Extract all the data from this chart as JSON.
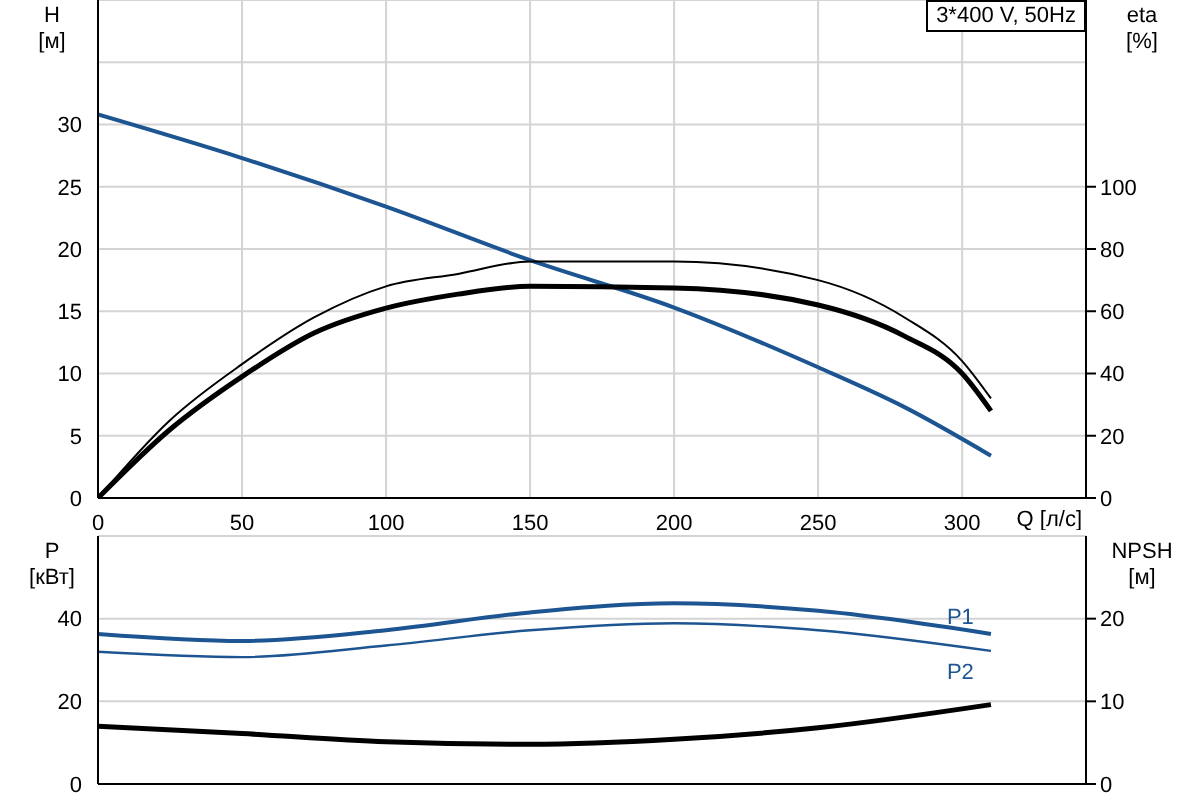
{
  "chart_data": [
    {
      "type": "line",
      "title": "3*400 V, 50Hz",
      "xlabel": "Q [л/с]",
      "ylabel": "H [м]",
      "y2label": "eta [%]",
      "xlim": [
        0,
        343
      ],
      "ylim": [
        0,
        40
      ],
      "y2lim": [
        0,
        160
      ],
      "xticks": [
        0,
        50,
        100,
        150,
        200,
        250,
        300
      ],
      "yticks": [
        0,
        5,
        10,
        15,
        20,
        25,
        30,
        {
          "value": 35,
          "label": null
        }
      ],
      "y2ticks": [
        0,
        20,
        40,
        60,
        80,
        100
      ],
      "grid": true,
      "series": [
        {
          "color": "#1c5591",
          "x": [
            0,
            50,
            100,
            150,
            200,
            250,
            280,
            310
          ],
          "values": [
            30.8,
            27.3,
            23.4,
            19.1,
            15.3,
            10.5,
            7.3,
            3.4
          ]
        },
        {
          "color": "#000000",
          "axis": "y2",
          "x": [
            0,
            25,
            50,
            75,
            100,
            125,
            150,
            200,
            250,
            280,
            300,
            310
          ],
          "values": [
            0,
            25,
            43,
            58,
            68,
            72,
            76,
            76,
            70,
            58,
            44,
            32
          ]
        },
        {
          "color": "#000000",
          "axis": "y2",
          "x": [
            0,
            25,
            50,
            75,
            100,
            125,
            150,
            200,
            250,
            280,
            300,
            310
          ],
          "values": [
            0,
            22,
            39,
            53,
            61,
            65.5,
            68,
            67.5,
            62,
            52,
            40,
            28
          ]
        }
      ]
    },
    {
      "type": "line",
      "ylabel": "P [кВт]",
      "y2label": "NPSH [м]",
      "xlim": [
        0,
        343
      ],
      "ylim": [
        0,
        60
      ],
      "y2lim": [
        0,
        30
      ],
      "xticks": [
        0,
        50,
        100,
        150,
        200,
        250,
        300
      ],
      "yticks": [
        0,
        20,
        40
      ],
      "y2ticks": [
        0,
        10,
        20
      ],
      "grid": true,
      "tick_labels": "y",
      "series": [
        {
          "name": "P1",
          "color": "#1c5591",
          "x": [
            0,
            50,
            100,
            150,
            200,
            250,
            310
          ],
          "values": [
            36.3,
            34.6,
            37.2,
            41.5,
            43.7,
            41.9,
            36.3
          ]
        },
        {
          "name": "P2",
          "color": "#1c5591",
          "x": [
            0,
            50,
            100,
            150,
            200,
            250,
            310
          ],
          "values": [
            32,
            30.7,
            33.5,
            37.2,
            38.9,
            37.2,
            32.2
          ]
        },
        {
          "color": "#000000",
          "axis": "y2",
          "x": [
            0,
            50,
            100,
            150,
            200,
            250,
            310
          ],
          "values": [
            7.0,
            6.1,
            5.1,
            4.8,
            5.4,
            6.8,
            9.6
          ]
        }
      ]
    }
  ]
}
